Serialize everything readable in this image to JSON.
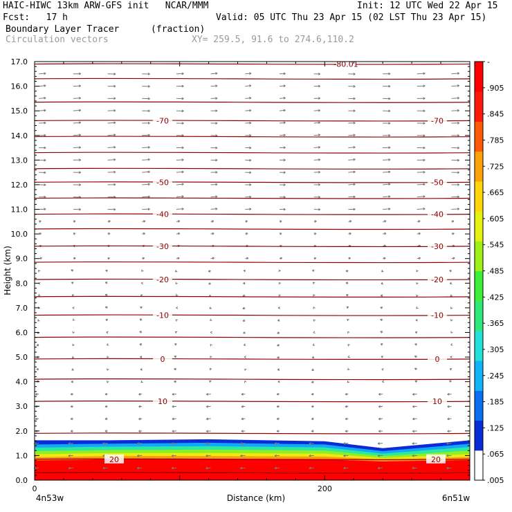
{
  "header": {
    "line1_left": "HAIC-HIWC 13km ARW-GFS init   NCAR/MMM",
    "line1_right": "Init: 12 UTC Wed 22 Apr 15",
    "line2_left": "Fcst:   17 h",
    "line2_right": "Valid: 05 UTC Thu 23 Apr 15 (02 LST Thu 23 Apr 15)",
    "line3_left": "Boundary Layer Tracer",
    "line3_mid": "(fraction)",
    "line4_left": "Circulation vectors",
    "line4_mid": "XY= 259.5, 91.6 to 274.6,110.2"
  },
  "colors": {
    "contour": "#8b0000",
    "vector": "#7a7a7a",
    "colorbar": [
      "#ffffff",
      "#0a2bd8",
      "#0a6ef0",
      "#12b4f8",
      "#25e0d8",
      "#2ee87a",
      "#3ef03a",
      "#9ef016",
      "#e6f012",
      "#ffd40a",
      "#ffa20a",
      "#ff5a0a",
      "#ff1a0a",
      "#ff0000"
    ]
  },
  "chart_data": {
    "type": "cross-section",
    "ylabel": "Height (km)",
    "xlabel": "Distance (km)",
    "xlim": [
      0,
      300
    ],
    "ylim": [
      0,
      17
    ],
    "yticks": [
      "0.0",
      "1.0",
      "2.0",
      "3.0",
      "4.0",
      "5.0",
      "6.0",
      "7.0",
      "8.0",
      "9.0",
      "10.0",
      "11.0",
      "12.0",
      "13.0",
      "14.0",
      "15.0",
      "16.0",
      "17.0"
    ],
    "xticks": [
      {
        "x": 0,
        "label": "0"
      },
      {
        "x": 200,
        "label": "200"
      }
    ],
    "left_endpoint": "4n53w",
    "right_endpoint": "6n51w",
    "colorbar_labels": [
      "-",
      ".905",
      ".845",
      ".785",
      ".725",
      ".665",
      ".605",
      ".545",
      ".485",
      ".425",
      ".365",
      ".305",
      ".245",
      ".185",
      ".125",
      ".065",
      ".005"
    ],
    "contours": [
      {
        "height": 0.3
      },
      {
        "height": 0.85,
        "label": "20"
      },
      {
        "height": 1.9
      },
      {
        "height": 3.2,
        "label": "10"
      },
      {
        "height": 4.1
      },
      {
        "height": 4.92,
        "label": "0"
      },
      {
        "height": 5.8
      },
      {
        "height": 6.7,
        "label": "-10"
      },
      {
        "height": 7.45
      },
      {
        "height": 8.15,
        "label": "-20"
      },
      {
        "height": 8.85
      },
      {
        "height": 9.5,
        "label": "-30"
      },
      {
        "height": 10.2
      },
      {
        "height": 10.8,
        "label": "-40"
      },
      {
        "height": 11.45
      },
      {
        "height": 12.1,
        "label": "-50"
      },
      {
        "height": 12.65
      },
      {
        "height": 13.3
      },
      {
        "height": 13.95
      },
      {
        "height": 14.6,
        "label": "-70"
      },
      {
        "height": 15.35
      },
      {
        "height": 16.3
      },
      {
        "height": 16.9,
        "label": "-80.01"
      }
    ]
  }
}
